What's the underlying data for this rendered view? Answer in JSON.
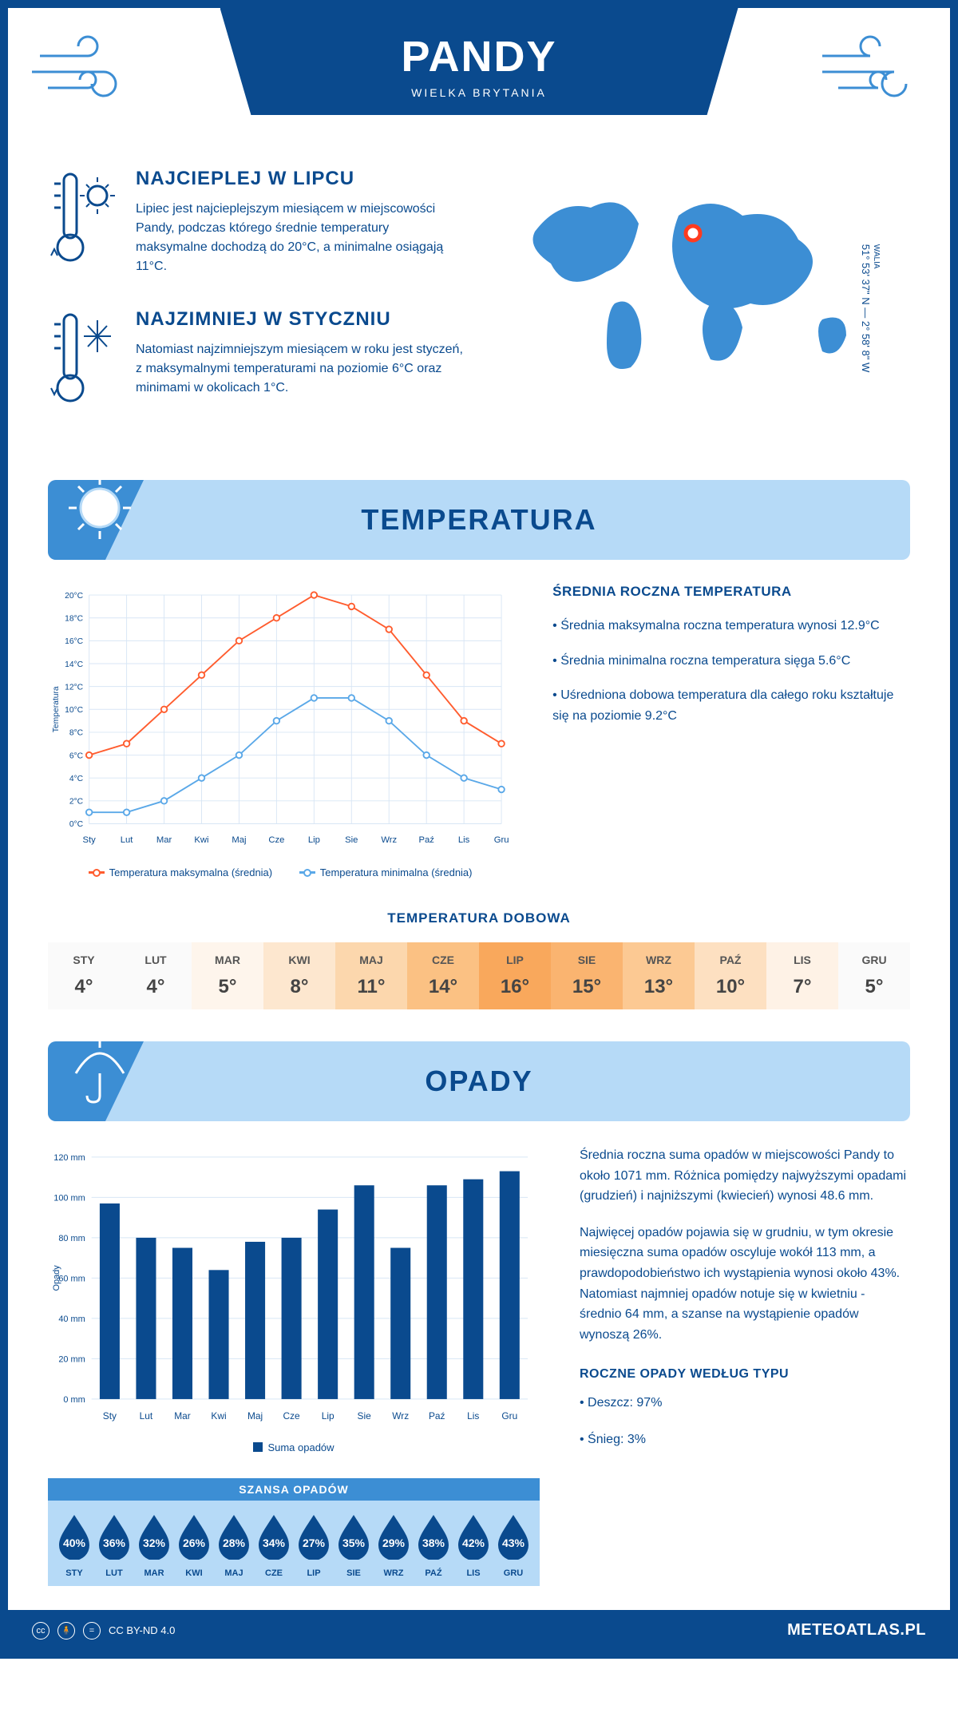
{
  "header": {
    "title": "PANDY",
    "subtitle": "WIELKA BRYTANIA"
  },
  "coords": {
    "text": "51° 53' 37\" N — 2° 58' 8\" W",
    "region": "WALIA"
  },
  "facts": {
    "warm": {
      "title": "NAJCIEPLEJ W LIPCU",
      "body": "Lipiec jest najcieplejszym miesiącem w miejscowości Pandy, podczas którego średnie temperatury maksymalne dochodzą do 20°C, a minimalne osiągają 11°C."
    },
    "cold": {
      "title": "NAJZIMNIEJ W STYCZNIU",
      "body": "Natomiast najzimniejszym miesiącem w roku jest styczeń, z maksymalnymi temperaturami na poziomie 6°C oraz minimami w okolicach 1°C."
    }
  },
  "sections": {
    "temperature": "TEMPERATURA",
    "precipitation": "OPADY"
  },
  "tempChart": {
    "type": "line",
    "months": [
      "Sty",
      "Lut",
      "Mar",
      "Kwi",
      "Maj",
      "Cze",
      "Lip",
      "Sie",
      "Wrz",
      "Paź",
      "Lis",
      "Gru"
    ],
    "series": {
      "max": {
        "label": "Temperatura maksymalna (średnia)",
        "color": "#ff5c2e",
        "values": [
          6,
          7,
          10,
          13,
          16,
          18,
          20,
          19,
          17,
          13,
          9,
          7
        ]
      },
      "min": {
        "label": "Temperatura minimalna (średnia)",
        "color": "#5aa8e8",
        "values": [
          1,
          1,
          2,
          4,
          6,
          9,
          11,
          11,
          9,
          6,
          4,
          3
        ]
      }
    },
    "ylabel": "Temperatura",
    "ylim": [
      0,
      20
    ],
    "ytick_step": 2,
    "grid_color": "#d8e6f5",
    "background_color": "#ffffff",
    "line_width": 2,
    "marker": "circle",
    "marker_size": 4
  },
  "tempInfo": {
    "heading": "ŚREDNIA ROCZNA TEMPERATURA",
    "b1": "• Średnia maksymalna roczna temperatura wynosi 12.9°C",
    "b2": "• Średnia minimalna roczna temperatura sięga 5.6°C",
    "b3": "• Uśredniona dobowa temperatura dla całego roku kształtuje się na poziomie 9.2°C"
  },
  "daily": {
    "title": "TEMPERATURA DOBOWA",
    "months": [
      "STY",
      "LUT",
      "MAR",
      "KWI",
      "MAJ",
      "CZE",
      "LIP",
      "SIE",
      "WRZ",
      "PAŹ",
      "LIS",
      "GRU"
    ],
    "values": [
      "4°",
      "4°",
      "5°",
      "8°",
      "11°",
      "14°",
      "16°",
      "15°",
      "13°",
      "10°",
      "7°",
      "5°"
    ],
    "colors": [
      "#fafafa",
      "#fafafa",
      "#fef5ec",
      "#fde7cf",
      "#fcd7ad",
      "#fbc183",
      "#f9a85c",
      "#fab470",
      "#fcc993",
      "#fde0c1",
      "#fef2e6",
      "#fafafa"
    ]
  },
  "precipChart": {
    "type": "bar",
    "months": [
      "Sty",
      "Lut",
      "Mar",
      "Kwi",
      "Maj",
      "Cze",
      "Lip",
      "Sie",
      "Wrz",
      "Paź",
      "Lis",
      "Gru"
    ],
    "values": [
      97,
      80,
      75,
      64,
      78,
      80,
      94,
      106,
      75,
      106,
      109,
      113
    ],
    "bar_color": "#0a4a8e",
    "ylabel": "Opady",
    "ylim": [
      0,
      120
    ],
    "ytick_step": 20,
    "grid_color": "#d8e6f5",
    "legend_label": "Suma opadów",
    "bar_width": 0.55
  },
  "precipInfo": {
    "p1": "Średnia roczna suma opadów w miejscowości Pandy to około 1071 mm. Różnica pomiędzy najwyższymi opadami (grudzień) i najniższymi (kwiecień) wynosi 48.6 mm.",
    "p2": "Najwięcej opadów pojawia się w grudniu, w tym okresie miesięczna suma opadów oscyluje wokół 113 mm, a prawdopodobieństwo ich wystąpienia wynosi około 43%. Natomiast najmniej opadów notuje się w kwietniu - średnio 64 mm, a szanse na wystąpienie opadów wynoszą 26%.",
    "typeHeading": "ROCZNE OPADY WEDŁUG TYPU",
    "t1": "• Deszcz: 97%",
    "t2": "• Śnieg: 3%"
  },
  "chance": {
    "title": "SZANSA OPADÓW",
    "months": [
      "STY",
      "LUT",
      "MAR",
      "KWI",
      "MAJ",
      "CZE",
      "LIP",
      "SIE",
      "WRZ",
      "PAŹ",
      "LIS",
      "GRU"
    ],
    "values": [
      "40%",
      "36%",
      "32%",
      "26%",
      "28%",
      "34%",
      "27%",
      "35%",
      "29%",
      "38%",
      "42%",
      "43%"
    ],
    "drop_color": "#0a4a8e"
  },
  "footer": {
    "license": "CC BY-ND 4.0",
    "site": "METEOATLAS.PL"
  },
  "palette": {
    "primary": "#0a4a8e",
    "light": "#b6daf7",
    "mid": "#3c8ed4",
    "accent": "#ff5c2e"
  }
}
